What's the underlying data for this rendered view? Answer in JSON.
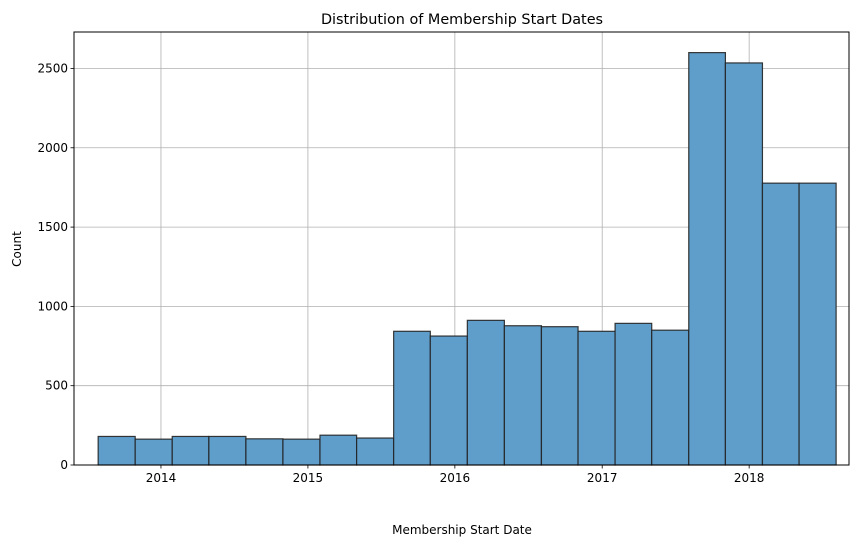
{
  "chart_data": {
    "type": "bar",
    "title": "Distribution of Membership Start Dates",
    "xlabel": "Membership Start Date",
    "ylabel": "Count",
    "x_ticks": [
      "2014",
      "2015",
      "2016",
      "2017",
      "2018"
    ],
    "y_ticks": [
      "0",
      "500",
      "1000",
      "1500",
      "2000",
      "2500"
    ],
    "ylim": [
      0,
      2730
    ],
    "xlim": [
      "2013-05-30",
      "2018-09-06"
    ],
    "grid": true,
    "bar_color": "#5f9ecb",
    "edge_color": "#222222",
    "bins": [
      {
        "start": "2013-07-29",
        "end": "2013-10-29",
        "count": 180
      },
      {
        "start": "2013-10-29",
        "end": "2014-01-29",
        "count": 163
      },
      {
        "start": "2014-01-29",
        "end": "2014-04-30",
        "count": 180
      },
      {
        "start": "2014-04-30",
        "end": "2014-07-31",
        "count": 180
      },
      {
        "start": "2014-07-31",
        "end": "2014-10-31",
        "count": 165
      },
      {
        "start": "2014-10-31",
        "end": "2015-01-31",
        "count": 163
      },
      {
        "start": "2015-01-31",
        "end": "2015-05-02",
        "count": 188
      },
      {
        "start": "2015-05-02",
        "end": "2015-08-02",
        "count": 170
      },
      {
        "start": "2015-08-02",
        "end": "2015-11-01",
        "count": 843
      },
      {
        "start": "2015-11-01",
        "end": "2016-02-01",
        "count": 813
      },
      {
        "start": "2016-02-01",
        "end": "2016-05-03",
        "count": 912
      },
      {
        "start": "2016-05-03",
        "end": "2016-08-03",
        "count": 878
      },
      {
        "start": "2016-08-03",
        "end": "2016-11-02",
        "count": 872
      },
      {
        "start": "2016-11-02",
        "end": "2017-02-02",
        "count": 843
      },
      {
        "start": "2017-02-02",
        "end": "2017-05-04",
        "count": 893
      },
      {
        "start": "2017-05-04",
        "end": "2017-08-04",
        "count": 850
      },
      {
        "start": "2017-08-04",
        "end": "2017-11-03",
        "count": 2600
      },
      {
        "start": "2017-11-03",
        "end": "2018-02-03",
        "count": 2535
      },
      {
        "start": "2018-02-03",
        "end": "2018-05-05",
        "count": 1777
      },
      {
        "start": "2018-05-05",
        "end": "2018-08-05",
        "count": 1777
      }
    ]
  }
}
